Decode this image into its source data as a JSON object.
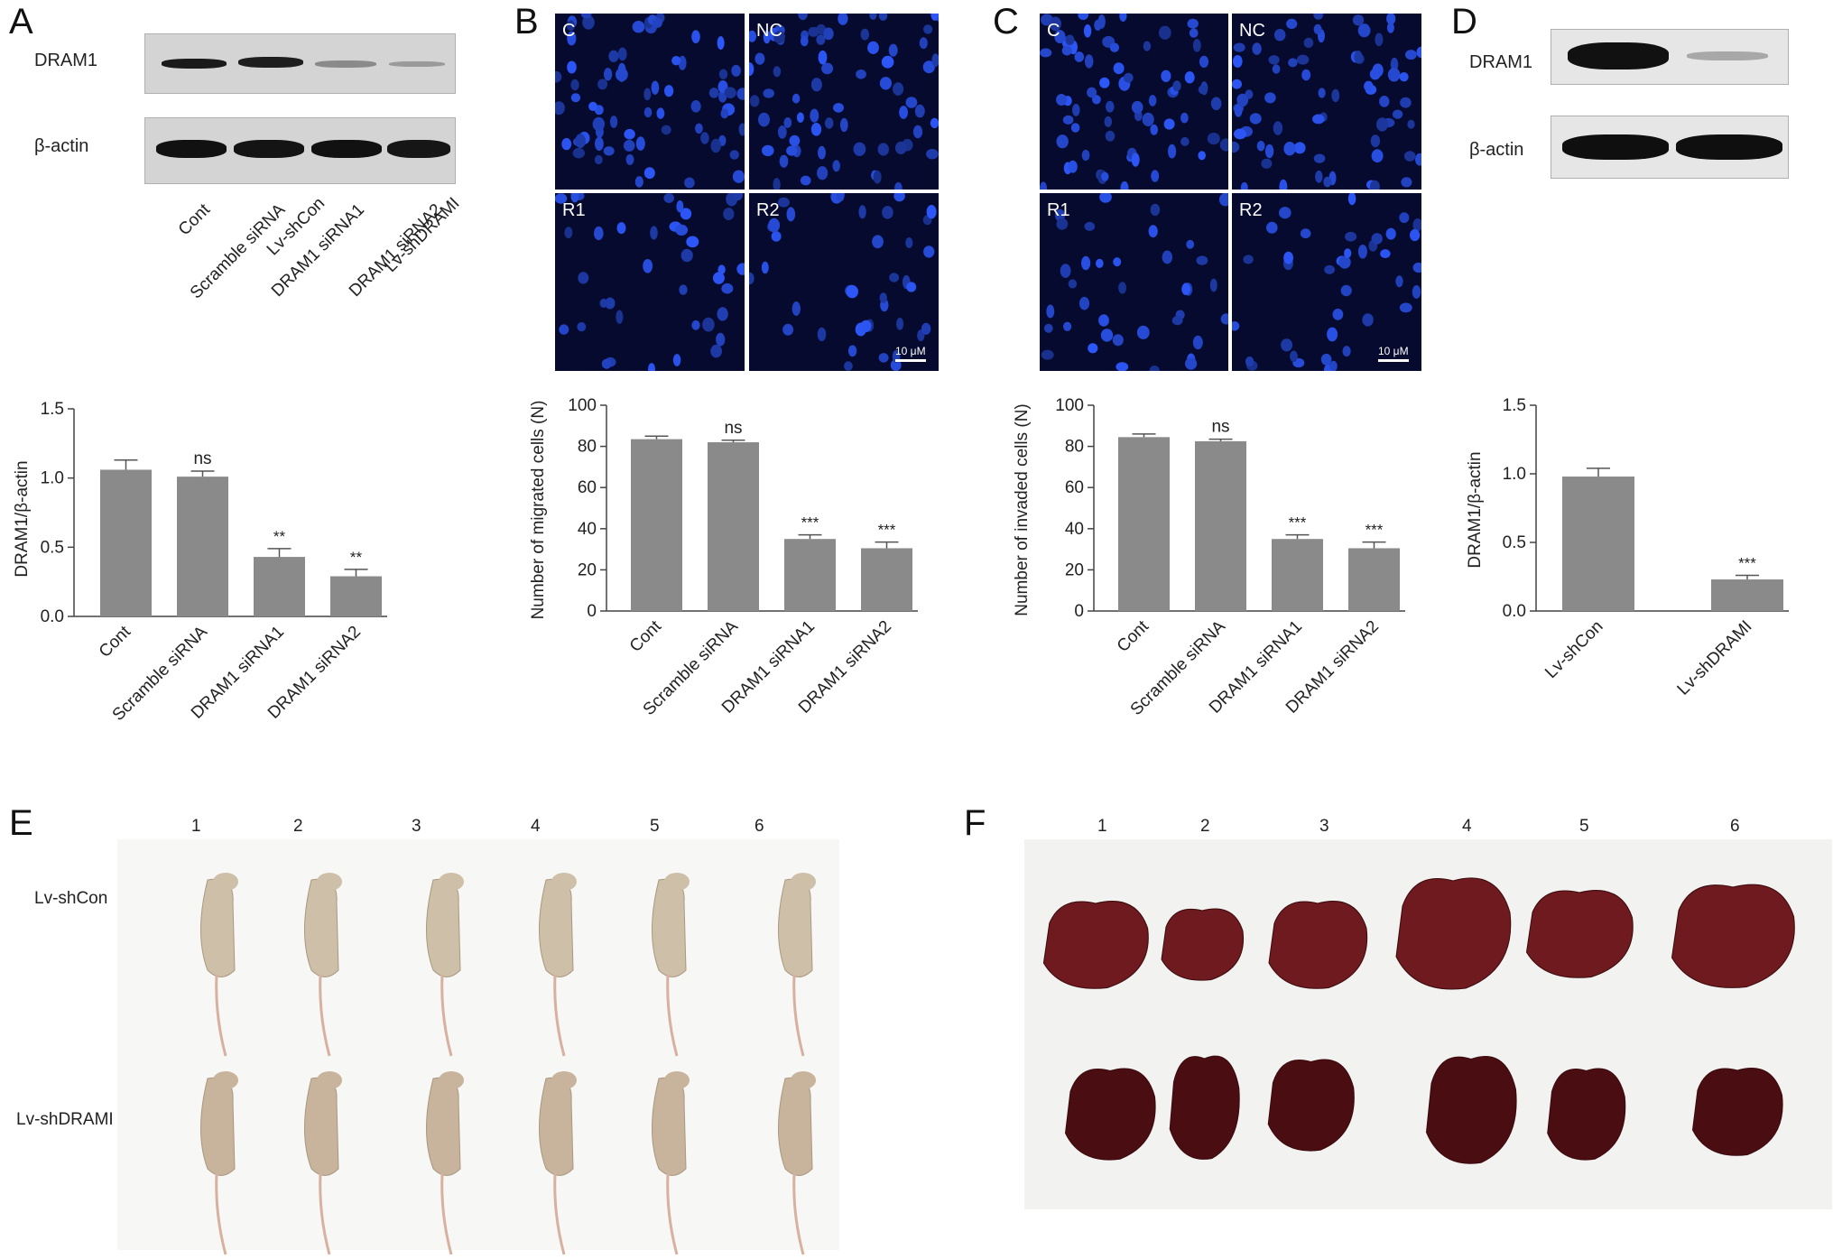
{
  "panels": {
    "A": {
      "label": "A",
      "blot_labels": [
        "DRAM1",
        "β-actin"
      ],
      "lanes": [
        "Cont",
        "Scramble siRNA",
        "DRAM1 siRNA1",
        "DRAM1 siRNA2"
      ]
    },
    "B": {
      "label": "B",
      "quadrants": [
        "C",
        "NC",
        "R1",
        "R2"
      ],
      "scale": "10 μM"
    },
    "C": {
      "label": "C",
      "quadrants": [
        "C",
        "NC",
        "R1",
        "R2"
      ],
      "scale": "10 μM"
    },
    "D": {
      "label": "D",
      "blot_labels": [
        "DRAM1",
        "β-actin"
      ],
      "lanes": [
        "Lv-shCon",
        "Lv-shDRAMI"
      ]
    },
    "E": {
      "label": "E",
      "numbers": [
        "1",
        "2",
        "3",
        "4",
        "5",
        "6"
      ],
      "rows": [
        "Lv-shCon",
        "Lv-shDRAMI"
      ]
    },
    "F": {
      "label": "F",
      "numbers": [
        "1",
        "2",
        "3",
        "4",
        "5",
        "6"
      ]
    }
  },
  "chart_data": [
    {
      "id": "A",
      "type": "bar",
      "categories": [
        "Cont",
        "Scramble siRNA",
        "DRAM1 siRNA1",
        "DRAM1 siRNA2"
      ],
      "values": [
        1.06,
        1.01,
        0.43,
        0.29
      ],
      "errors": [
        0.07,
        0.04,
        0.06,
        0.05
      ],
      "annotations": [
        "",
        "ns",
        "**",
        "**"
      ],
      "ylabel": "DRAM1/β-actin",
      "ylim": [
        0,
        1.5
      ],
      "yticks": [
        "0.0",
        "0.5",
        "1.0",
        "1.5"
      ]
    },
    {
      "id": "B",
      "type": "bar",
      "categories": [
        "Cont",
        "Scramble siRNA",
        "DRAM1 siRNA1",
        "DRAM1 siRNA2"
      ],
      "values": [
        83.5,
        82,
        35,
        30.5
      ],
      "errors": [
        1.5,
        1,
        2,
        3
      ],
      "annotations": [
        "",
        "ns",
        "***",
        "***"
      ],
      "ylabel": "Number of migrated cells (N)",
      "ylim": [
        0,
        100
      ],
      "yticks": [
        "0",
        "20",
        "40",
        "60",
        "80",
        "100"
      ]
    },
    {
      "id": "C",
      "type": "bar",
      "categories": [
        "Cont",
        "Scramble siRNA",
        "DRAM1 siRNA1",
        "DRAM1 siRNA2"
      ],
      "values": [
        84.5,
        82.5,
        35,
        30.5
      ],
      "errors": [
        1.5,
        1,
        2,
        3
      ],
      "annotations": [
        "",
        "ns",
        "***",
        "***"
      ],
      "ylabel": "Number of invaded cells (N)",
      "ylim": [
        0,
        100
      ],
      "yticks": [
        "0",
        "20",
        "40",
        "60",
        "80",
        "100"
      ]
    },
    {
      "id": "D",
      "type": "bar",
      "categories": [
        "Lv-shCon",
        "Lv-shDRAMI"
      ],
      "values": [
        0.98,
        0.23
      ],
      "errors": [
        0.06,
        0.03
      ],
      "annotations": [
        "",
        "***"
      ],
      "ylabel": "DRAM1/β-actin",
      "ylim": [
        0,
        1.5
      ],
      "yticks": [
        "0.0",
        "0.5",
        "1.0",
        "1.5"
      ]
    }
  ]
}
